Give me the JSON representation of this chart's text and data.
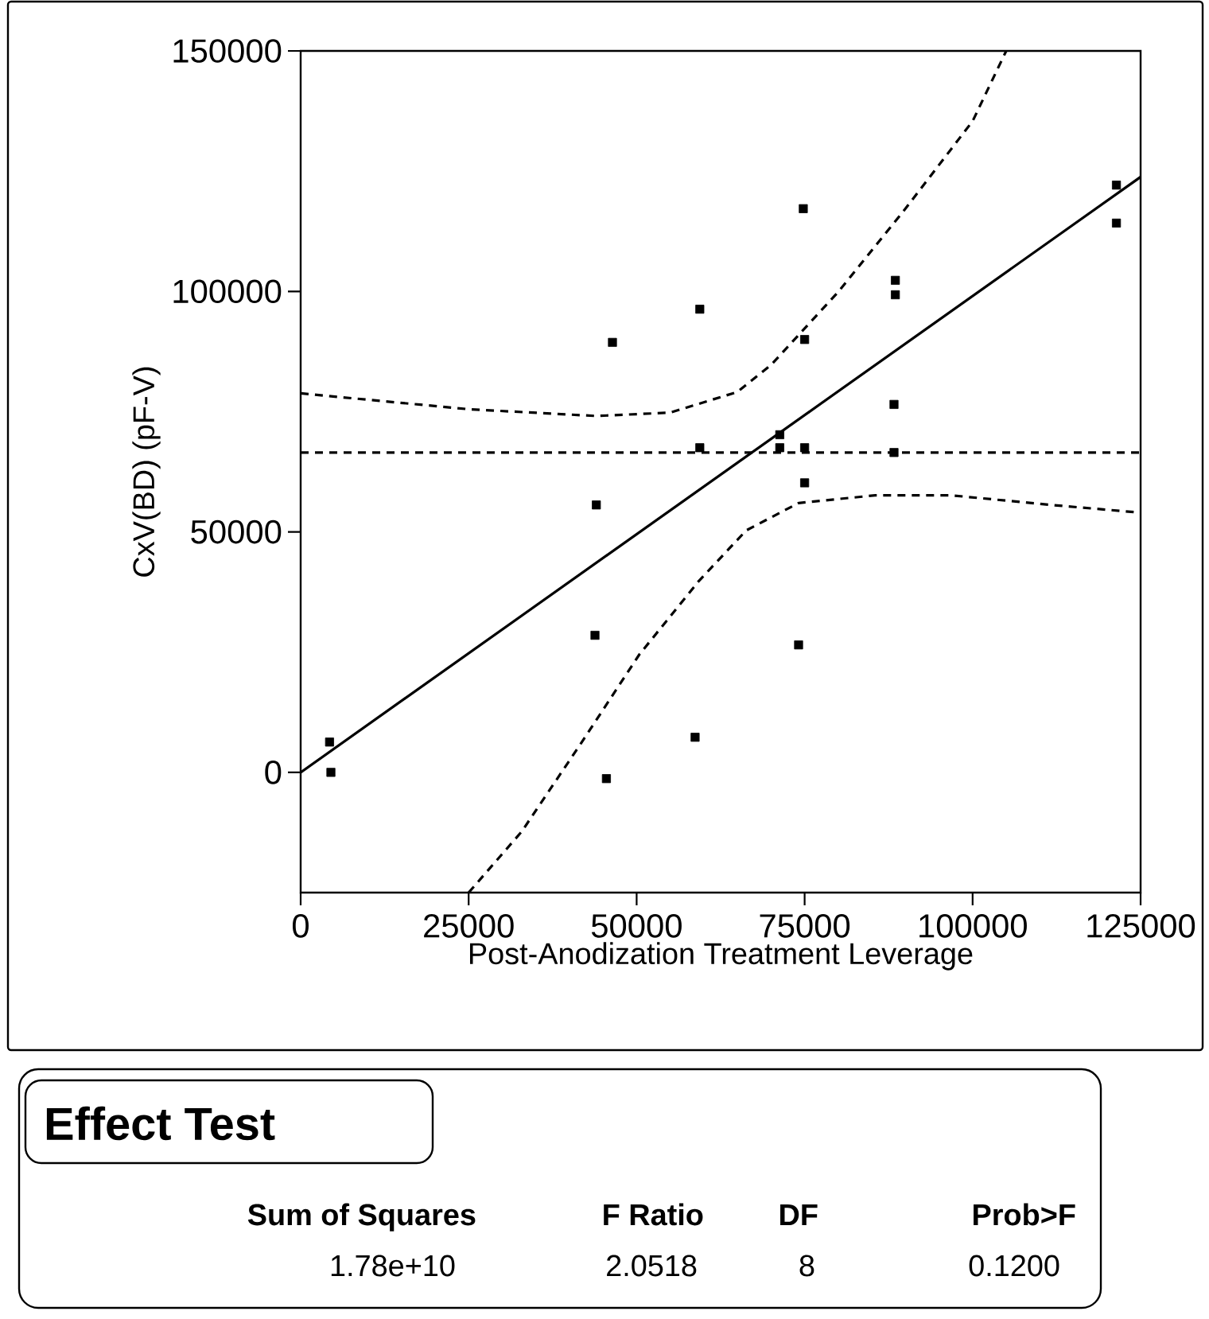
{
  "chart_data": {
    "type": "scatter",
    "xlabel": "Post-Anodization Treatment Leverage",
    "ylabel": "CxV(BD) (pF-V)",
    "xlim": [
      0,
      125000
    ],
    "ylim": [
      -25000,
      150000
    ],
    "xticks": [
      0,
      25000,
      50000,
      75000,
      100000,
      125000
    ],
    "yticks": [
      0,
      50000,
      100000,
      150000
    ],
    "series": [
      {
        "marker": "square",
        "color": "#000000",
        "x": [
          4300,
          4500,
          44000,
          43800,
          46400,
          45500,
          59400,
          58700,
          59400,
          71300,
          71300,
          74800,
          75000,
          75000,
          75000,
          74100,
          88500,
          88500,
          88300,
          88300,
          121400,
          121400
        ],
        "values": [
          6300,
          0,
          55600,
          28500,
          89400,
          -1300,
          96300,
          7300,
          67500,
          70200,
          67500,
          117200,
          90000,
          67500,
          60200,
          26500,
          102300,
          99300,
          76500,
          66500,
          122100,
          114200
        ]
      },
      {
        "type": "line",
        "line_style": "solid",
        "color": "#000000",
        "x": [
          0,
          125000
        ],
        "values": [
          0,
          123800
        ]
      },
      {
        "type": "line",
        "line_style": "dashed",
        "color": "#000000",
        "x": [
          0,
          125000
        ],
        "values": [
          66500,
          66500
        ]
      },
      {
        "type": "line",
        "line_style": "dashed",
        "color": "#000000",
        "x": [
          0,
          25000,
          44000,
          55000,
          65000,
          70000,
          80000,
          90000,
          100000,
          105000
        ],
        "values": [
          78800,
          75500,
          74100,
          74800,
          79100,
          84700,
          99900,
          117200,
          135400,
          150000
        ]
      },
      {
        "type": "line",
        "line_style": "dashed",
        "color": "#000000",
        "x": [
          25000,
          32900,
          41700,
          50400,
          59200,
          66300,
          74100,
          85500,
          96800,
          111700,
          125000
        ],
        "values": [
          -25000,
          -12300,
          6000,
          24500,
          39700,
          50300,
          56000,
          57600,
          57600,
          55600,
          54000
        ]
      }
    ],
    "annotations": [
      "Effect Test",
      "Sum of Squares",
      "F Ratio",
      "DF",
      "Prob>F",
      "1.78e+10",
      "2.0518",
      "8",
      "0.1200"
    ]
  }
}
